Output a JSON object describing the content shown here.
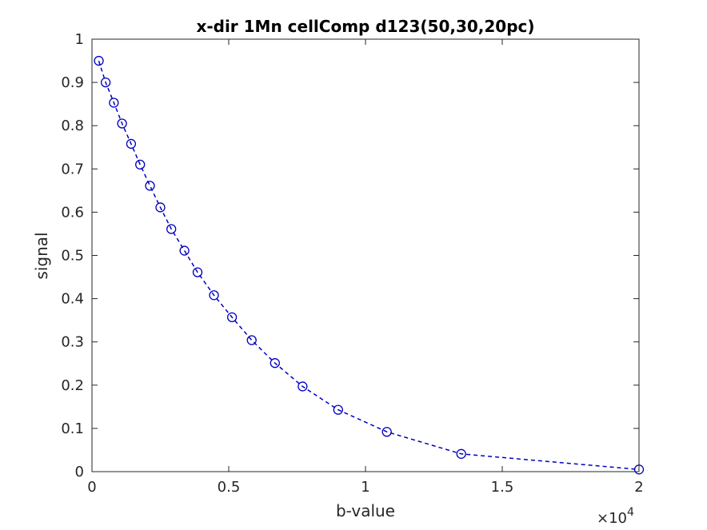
{
  "chart_data": {
    "type": "line",
    "title": "x-dir 1Mn cellComp d123(50,30,20pc)",
    "xlabel": "b-value",
    "ylabel": "signal",
    "xlim": [
      0,
      2
    ],
    "ylim": [
      0,
      1
    ],
    "x_exponent_label": "×10",
    "x_exponent_power": "4",
    "x_ticks": [
      0,
      0.5,
      1,
      1.5,
      2
    ],
    "x_tick_labels": [
      "0",
      "0.5",
      "1",
      "1.5",
      "2"
    ],
    "y_ticks": [
      0,
      0.1,
      0.2,
      0.3,
      0.4,
      0.5,
      0.6,
      0.7,
      0.8,
      0.9,
      1
    ],
    "y_tick_labels": [
      "0",
      "0.1",
      "0.2",
      "0.3",
      "0.4",
      "0.5",
      "0.6",
      "0.7",
      "0.8",
      "0.9",
      "1"
    ],
    "grid": false,
    "series": [
      {
        "color": "#0000c0",
        "line_style": "dashed",
        "marker": "circle",
        "x": [
          0.025,
          0.05,
          0.08,
          0.11,
          0.143,
          0.176,
          0.212,
          0.25,
          0.29,
          0.338,
          0.386,
          0.446,
          0.512,
          0.584,
          0.669,
          0.77,
          0.9,
          1.078,
          1.35,
          2.0
        ],
        "y": [
          0.95,
          0.9,
          0.853,
          0.805,
          0.758,
          0.71,
          0.661,
          0.611,
          0.561,
          0.511,
          0.461,
          0.408,
          0.357,
          0.304,
          0.251,
          0.197,
          0.143,
          0.092,
          0.041,
          0.005
        ]
      }
    ]
  }
}
